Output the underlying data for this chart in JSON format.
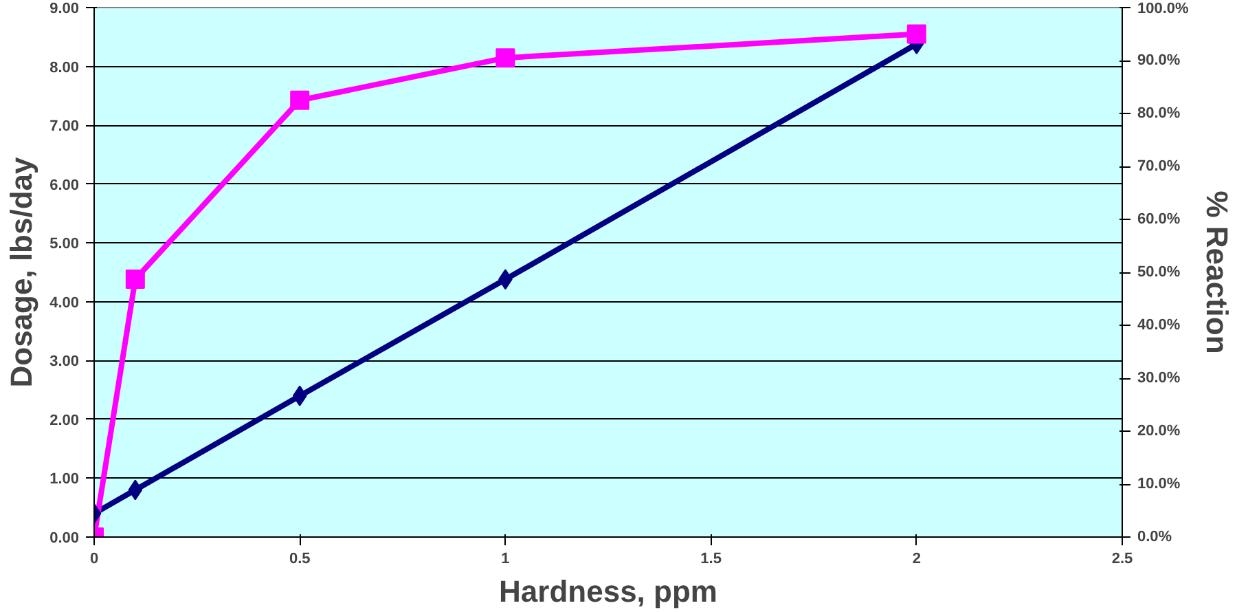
{
  "chart_data": {
    "type": "line",
    "xlabel": "Hardness, ppm",
    "ylabel": "Dosage, lbs/day",
    "y2label": "% Reaction",
    "xlim": [
      0,
      2.5
    ],
    "xticks": [
      0,
      0.5,
      1,
      1.5,
      2,
      2.5
    ],
    "ylim": [
      0,
      9
    ],
    "yticks": [
      {
        "value": 0,
        "label": "0.00"
      },
      {
        "value": 1,
        "label": "1.00"
      },
      {
        "value": 2,
        "label": "2.00"
      },
      {
        "value": 3,
        "label": "3.00"
      },
      {
        "value": 4,
        "label": "4.00"
      },
      {
        "value": 5,
        "label": "5.00"
      },
      {
        "value": 6,
        "label": "6.00"
      },
      {
        "value": 7,
        "label": "7.00"
      },
      {
        "value": 8,
        "label": "8.00"
      },
      {
        "value": 9,
        "label": "9.00"
      }
    ],
    "y2lim": [
      0,
      100
    ],
    "y2ticks": [
      {
        "value": 0,
        "label": "0.0%"
      },
      {
        "value": 10,
        "label": "10.0%"
      },
      {
        "value": 20,
        "label": "20.0%"
      },
      {
        "value": 30,
        "label": "30.0%"
      },
      {
        "value": 40,
        "label": "40.0%"
      },
      {
        "value": 50,
        "label": "50.0%"
      },
      {
        "value": 60,
        "label": "60.0%"
      },
      {
        "value": 70,
        "label": "70.0%"
      },
      {
        "value": 80,
        "label": "80.0%"
      },
      {
        "value": 90,
        "label": "90.0%"
      },
      {
        "value": 100,
        "label": "100.0%"
      }
    ],
    "grid": "y",
    "series": [
      {
        "color": "#000080",
        "marker": "diamond",
        "x": [
          0,
          0.1,
          0.5,
          1,
          2
        ],
        "values": [
          0.4,
          0.8,
          2.4,
          4.38,
          8.38
        ]
      },
      {
        "color": "#ff00ff",
        "marker": "square",
        "axis": "y2",
        "x": [
          0,
          0.1,
          0.5,
          1,
          2
        ],
        "values": [
          0,
          48.7,
          82.5,
          90.5,
          95
        ]
      }
    ]
  }
}
